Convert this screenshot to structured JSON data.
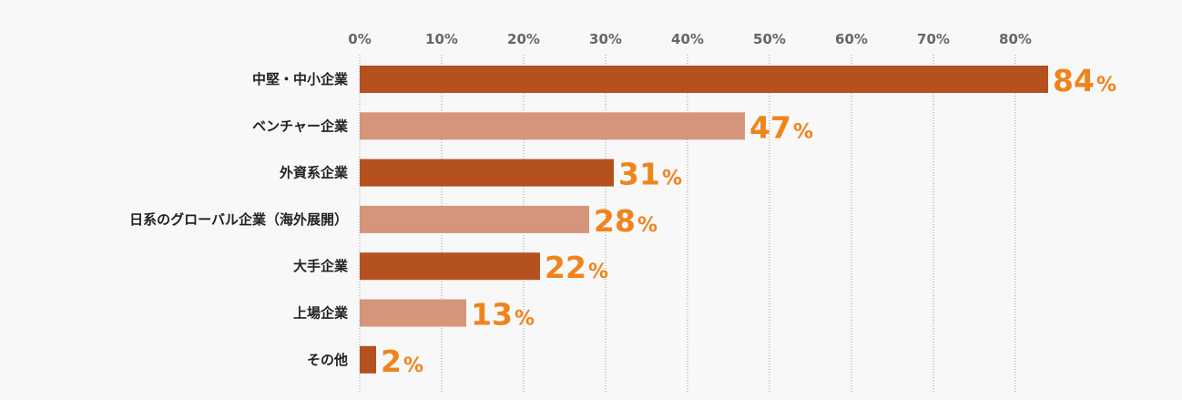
{
  "chart_data": {
    "type": "bar",
    "orientation": "horizontal",
    "title": "",
    "xlabel": "",
    "ylabel": "",
    "xlim": [
      0,
      90
    ],
    "ticks": [
      0,
      10,
      20,
      30,
      40,
      50,
      60,
      70,
      80
    ],
    "tick_labels": [
      "0%",
      "10%",
      "20%",
      "30%",
      "40%",
      "50%",
      "60%",
      "70%",
      "80%"
    ],
    "grid": true,
    "categories": [
      "中堅・中小企業",
      "ベンチャー企業",
      "外資系企業",
      "日系のグローバル企業（海外展開）",
      "大手企業",
      "上場企業",
      "その他"
    ],
    "values": [
      84,
      47,
      31,
      28,
      22,
      13,
      2
    ],
    "value_labels": [
      "84",
      "47",
      "31",
      "28",
      "22",
      "13",
      "2"
    ],
    "unit": "%",
    "colors": {
      "bar_dark": "#b5511f",
      "bar_light": "#d4957a",
      "value_text": "#f0841c",
      "tick_text": "#666666",
      "category_text": "#222222",
      "grid": "#9a9a9a",
      "background": "#f8f8f8"
    }
  }
}
